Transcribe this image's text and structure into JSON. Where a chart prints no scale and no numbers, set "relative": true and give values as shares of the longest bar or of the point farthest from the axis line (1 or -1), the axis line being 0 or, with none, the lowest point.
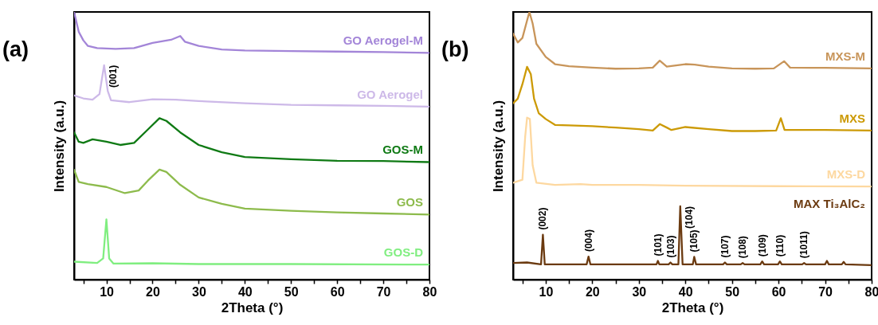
{
  "chart_data": [
    {
      "type": "line",
      "title": "(a)",
      "xlabel": "2Theta (°)",
      "ylabel": "Intensity (a.u.)",
      "relative": true,
      "xlim": [
        3,
        80
      ],
      "xticks": [
        {
          "value": 5,
          "label": null
        },
        10,
        {
          "value": 15,
          "label": null
        },
        20,
        {
          "value": 25,
          "label": null
        },
        30,
        {
          "value": 35,
          "label": null
        },
        40,
        {
          "value": 45,
          "label": null
        },
        50,
        {
          "value": 55,
          "label": null
        },
        60,
        {
          "value": 65,
          "label": null
        },
        70,
        {
          "value": 75,
          "label": null
        },
        80
      ],
      "grid": false,
      "legend": false,
      "line_style": "solid",
      "annotations": [
        {
          "text": "(001)",
          "x": 9.5,
          "y": 0.801
        }
      ],
      "series": [
        {
          "name": "GO Aerogel-M",
          "color": "#a385d8",
          "x": [
            3,
            4,
            5,
            6,
            8,
            12,
            16,
            20,
            24,
            26,
            27,
            30,
            35,
            40,
            50,
            60,
            70,
            80
          ],
          "values": [
            1.0,
            0.926,
            0.894,
            0.873,
            0.865,
            0.862,
            0.865,
            0.884,
            0.896,
            0.91,
            0.889,
            0.873,
            0.86,
            0.856,
            0.854,
            0.852,
            0.85,
            0.847
          ]
        },
        {
          "name": "GO Aerogel",
          "color": "#cdb9e8",
          "x": [
            3,
            5,
            7,
            8.5,
            9.5,
            10.3,
            11,
            15,
            20,
            25,
            30,
            40,
            50,
            60,
            70,
            80
          ],
          "values": [
            0.688,
            0.677,
            0.672,
            0.693,
            0.801,
            0.704,
            0.67,
            0.663,
            0.674,
            0.672,
            0.667,
            0.659,
            0.653,
            0.651,
            0.649,
            0.646
          ]
        },
        {
          "name": "GOS-M",
          "color": "#0f7a14",
          "x": [
            3,
            4,
            5,
            7,
            10,
            13,
            16,
            19,
            21.5,
            23,
            26,
            30,
            35,
            40,
            50,
            60,
            70,
            80
          ],
          "values": [
            0.55,
            0.515,
            0.511,
            0.524,
            0.515,
            0.503,
            0.511,
            0.561,
            0.603,
            0.593,
            0.55,
            0.503,
            0.476,
            0.458,
            0.45,
            0.444,
            0.443,
            0.439
          ]
        },
        {
          "name": "GOS",
          "color": "#8dbb4c",
          "x": [
            3,
            4,
            6,
            10,
            14,
            17,
            19,
            21.5,
            23,
            26,
            30,
            35,
            40,
            50,
            60,
            70,
            80
          ],
          "values": [
            0.41,
            0.365,
            0.357,
            0.346,
            0.323,
            0.333,
            0.37,
            0.411,
            0.402,
            0.354,
            0.307,
            0.283,
            0.265,
            0.257,
            0.251,
            0.247,
            0.243
          ]
        },
        {
          "name": "GOS-D",
          "color": "#80ee80",
          "x": [
            3,
            8,
            9.3,
            10,
            10.6,
            11.5,
            20,
            30,
            50,
            80
          ],
          "values": [
            0.067,
            0.062,
            0.079,
            0.225,
            0.079,
            0.06,
            0.061,
            0.058,
            0.058,
            0.056
          ]
        }
      ]
    },
    {
      "type": "line",
      "title": "(b)",
      "xlabel": "2Theta (°)",
      "ylabel": "Intensity (a.u.)",
      "relative": true,
      "xlim": [
        3,
        80
      ],
      "xticks": [
        {
          "value": 5,
          "label": null
        },
        10,
        {
          "value": 15,
          "label": null
        },
        20,
        {
          "value": 25,
          "label": null
        },
        30,
        {
          "value": 35,
          "label": null
        },
        40,
        {
          "value": 45,
          "label": null
        },
        50,
        {
          "value": 55,
          "label": null
        },
        60,
        {
          "value": 65,
          "label": null
        },
        70,
        {
          "value": 75,
          "label": null
        },
        80
      ],
      "grid": false,
      "legend": false,
      "line_style": "solid",
      "annotations": [
        {
          "text": "(002)",
          "x": 9.4,
          "y": 0.168
        },
        {
          "text": "(004)",
          "x": 19.2,
          "y": 0.086
        },
        {
          "text": "(101)",
          "x": 34.1,
          "y": 0.07
        },
        {
          "text": "(103)",
          "x": 36.8,
          "y": 0.064
        },
        {
          "text": "(104)",
          "x": 38.9,
          "y": 0.274
        },
        {
          "text": "(105)",
          "x": 41.9,
          "y": 0.085
        },
        {
          "text": "(107)",
          "x": 48.5,
          "y": 0.064
        },
        {
          "text": "(108)",
          "x": 52.3,
          "y": 0.062
        },
        {
          "text": "(109)",
          "x": 56.5,
          "y": 0.068
        },
        {
          "text": "(110)",
          "x": 60.3,
          "y": 0.068
        },
        {
          "text": "(1011)",
          "x": 65.5,
          "y": 0.062
        }
      ],
      "series": [
        {
          "name": "MXS-M",
          "color": "#c8955a",
          "x": [
            3,
            4,
            5,
            6,
            6.5,
            7.2,
            8,
            10,
            12,
            15,
            20,
            25,
            30,
            33,
            34.5,
            36,
            40,
            42,
            45,
            50,
            55,
            59,
            61.2,
            62.5,
            70,
            80
          ],
          "values": [
            0.919,
            0.886,
            0.903,
            0.968,
            1.0,
            0.957,
            0.881,
            0.832,
            0.805,
            0.797,
            0.792,
            0.788,
            0.789,
            0.792,
            0.818,
            0.796,
            0.805,
            0.803,
            0.796,
            0.789,
            0.788,
            0.789,
            0.816,
            0.792,
            0.791,
            0.789
          ]
        },
        {
          "name": "MXS",
          "color": "#cc9a06",
          "x": [
            3,
            4,
            5,
            6,
            6.8,
            7.5,
            8.5,
            10,
            12,
            15,
            20,
            25,
            30,
            33,
            34.5,
            36,
            37,
            40,
            45,
            50,
            55,
            59.5,
            60.5,
            61.3,
            70,
            80
          ],
          "values": [
            0.659,
            0.676,
            0.73,
            0.795,
            0.768,
            0.676,
            0.622,
            0.6,
            0.578,
            0.576,
            0.573,
            0.568,
            0.562,
            0.557,
            0.581,
            0.568,
            0.559,
            0.57,
            0.562,
            0.555,
            0.555,
            0.557,
            0.603,
            0.559,
            0.559,
            0.557
          ]
        },
        {
          "name": "MXS-D",
          "color": "#fdd8a0",
          "x": [
            3,
            5,
            5.6,
            6,
            6.6,
            7.2,
            8,
            12,
            17.5,
            20,
            30,
            40,
            60,
            80
          ],
          "values": [
            0.362,
            0.373,
            0.535,
            0.605,
            0.6,
            0.427,
            0.362,
            0.354,
            0.357,
            0.354,
            0.354,
            0.351,
            0.349,
            0.348
          ]
        },
        {
          "name": "MAX Ti₃AlC₂",
          "color": "#6b3a10",
          "x": [
            3,
            6,
            9,
            9.4,
            9.8,
            18.8,
            19.2,
            19.6,
            33.8,
            34.1,
            34.4,
            36.4,
            36.8,
            37.2,
            38.5,
            38.9,
            39.4,
            41.6,
            41.9,
            42.3,
            48.1,
            48.5,
            48.9,
            51.9,
            52.3,
            52.7,
            56.1,
            56.5,
            56.9,
            59.9,
            60.3,
            60.7,
            65.1,
            65.5,
            65.9,
            70,
            70.4,
            70.8,
            73.6,
            74,
            74.4,
            80
          ],
          "values": [
            0.062,
            0.064,
            0.057,
            0.168,
            0.057,
            0.057,
            0.086,
            0.057,
            0.057,
            0.07,
            0.057,
            0.057,
            0.064,
            0.057,
            0.057,
            0.274,
            0.057,
            0.057,
            0.085,
            0.057,
            0.057,
            0.064,
            0.057,
            0.057,
            0.062,
            0.057,
            0.057,
            0.068,
            0.057,
            0.057,
            0.068,
            0.057,
            0.057,
            0.062,
            0.057,
            0.057,
            0.07,
            0.057,
            0.057,
            0.066,
            0.057,
            0.054
          ]
        }
      ]
    }
  ]
}
